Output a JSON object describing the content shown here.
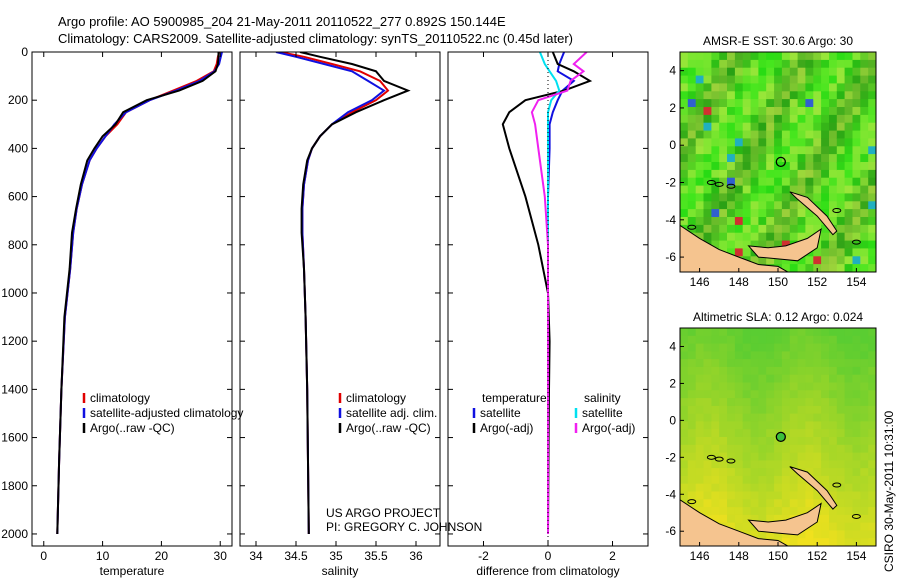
{
  "header": {
    "line1": "Argo profile: AO 5900985_204 21-May-2011 20110522_277 0.892S 150.144E",
    "line2": "Climatology: CARS2009. Satellite-adjusted climatology: synTS_20110522.nc (0.45d later)"
  },
  "colors": {
    "climatology": "#e00000",
    "satellite": "#1010e0",
    "argo": "#000000",
    "satellite_cyan": "#00e0f0",
    "argo_adj": "#f020f0"
  },
  "project": {
    "line1": "US ARGO PROJECT",
    "line2": "PI: GREGORY C. JOHNSON"
  },
  "credit": "CSIRO 30-May-2011 10:31:00",
  "chart_data": [
    {
      "type": "line",
      "id": "temperature",
      "xlabel": "temperature",
      "ylabel": "",
      "xlim": [
        -2,
        32
      ],
      "ylim": [
        2050,
        0
      ],
      "xticks": [
        0,
        10,
        20,
        30
      ],
      "yticks": [
        0,
        200,
        400,
        600,
        800,
        1000,
        1200,
        1400,
        1600,
        1800,
        2000
      ],
      "legend": [
        "climatology",
        "satellite-adjusted climatology",
        "Argo(..raw -QC)"
      ],
      "series": [
        {
          "name": "climatology",
          "color": "climatology",
          "x": [
            29.8,
            29.6,
            29.4,
            28.9,
            26,
            22,
            18,
            14,
            12.5,
            10.5,
            9,
            7.8,
            6.5,
            5.6,
            5,
            4.5,
            3.6,
            3,
            2.6,
            2.3
          ],
          "y": [
            0,
            20,
            50,
            80,
            120,
            160,
            200,
            250,
            300,
            350,
            400,
            450,
            550,
            650,
            750,
            900,
            1100,
            1400,
            1700,
            2000
          ]
        },
        {
          "name": "satellite-adjusted climatology",
          "color": "satellite",
          "x": [
            30.3,
            30.1,
            29.8,
            29,
            26.5,
            22.5,
            18,
            14,
            12,
            10.5,
            9,
            7.8,
            6.5,
            5.6,
            5,
            4.5,
            3.6,
            3,
            2.6,
            2.3
          ],
          "y": [
            0,
            20,
            50,
            80,
            120,
            160,
            200,
            250,
            300,
            350,
            400,
            450,
            550,
            650,
            750,
            900,
            1100,
            1400,
            1700,
            2000
          ]
        },
        {
          "name": "Argo(..raw -QC)",
          "color": "argo",
          "x": [
            29.7,
            29.7,
            29.6,
            29.2,
            27,
            23,
            17.5,
            13.5,
            12.2,
            10,
            8.6,
            7.4,
            6.3,
            5.5,
            4.8,
            4.4,
            3.5,
            3,
            2.6,
            2.3
          ],
          "y": [
            0,
            20,
            50,
            80,
            120,
            160,
            200,
            250,
            300,
            350,
            400,
            450,
            550,
            650,
            750,
            900,
            1100,
            1400,
            1700,
            2000
          ]
        }
      ]
    },
    {
      "type": "line",
      "id": "salinity",
      "xlabel": "salinity",
      "ylabel": "",
      "xlim": [
        33.8,
        36.3
      ],
      "xticks": [
        34,
        34.5,
        35,
        35.5,
        36
      ],
      "legend": [
        "climatology",
        "satellite adj. clim.",
        "Argo(..raw -QC)"
      ],
      "series": [
        {
          "name": "climatology",
          "color": "climatology",
          "x": [
            34.3,
            34.6,
            34.95,
            35.3,
            35.55,
            35.65,
            35.5,
            35.2,
            34.95,
            34.8,
            34.7,
            34.65,
            34.6,
            34.58,
            34.58,
            34.6,
            34.62,
            34.64,
            34.65,
            34.66
          ],
          "y": [
            0,
            20,
            50,
            80,
            120,
            160,
            200,
            250,
            300,
            350,
            400,
            450,
            550,
            650,
            750,
            900,
            1100,
            1400,
            1700,
            2000
          ]
        },
        {
          "name": "satellite adj. clim.",
          "color": "satellite",
          "x": [
            34.25,
            34.5,
            34.85,
            35.2,
            35.4,
            35.6,
            35.45,
            35.15,
            34.95,
            34.8,
            34.7,
            34.65,
            34.6,
            34.58,
            34.58,
            34.6,
            34.62,
            34.64,
            34.65,
            34.66
          ],
          "y": [
            0,
            20,
            50,
            80,
            120,
            160,
            200,
            250,
            300,
            350,
            400,
            450,
            550,
            650,
            750,
            900,
            1100,
            1400,
            1700,
            2000
          ]
        },
        {
          "name": "Argo(..raw -QC)",
          "color": "argo",
          "x": [
            34.55,
            34.8,
            35.2,
            35.5,
            35.6,
            35.9,
            35.6,
            35.25,
            34.95,
            34.8,
            34.7,
            34.64,
            34.59,
            34.57,
            34.57,
            34.6,
            34.62,
            34.64,
            34.65,
            34.66
          ],
          "y": [
            0,
            20,
            50,
            80,
            120,
            160,
            200,
            250,
            300,
            350,
            400,
            450,
            550,
            650,
            750,
            900,
            1100,
            1400,
            1700,
            2000
          ]
        }
      ]
    },
    {
      "type": "line",
      "id": "difference",
      "xlabel": "difference from climatology",
      "ylabel": "",
      "xlim": [
        -3.1,
        3.1
      ],
      "xticks": [
        -2,
        0,
        2
      ],
      "legend": [
        "temperature",
        "satellite",
        "Argo(-adj)",
        "salinity",
        "satellite",
        "Argo(-adj)"
      ],
      "series": [
        {
          "name": "temperature satellite",
          "color": "satellite",
          "x": [
            0.5,
            0.35,
            0.3,
            0.8,
            0.45,
            0.3,
            0.15,
            0.05,
            0.05,
            0,
            0,
            0,
            0,
            0,
            0,
            0,
            0
          ],
          "y": [
            0,
            50,
            80,
            120,
            160,
            200,
            250,
            300,
            400,
            600,
            800,
            1000,
            1200,
            1400,
            1600,
            1800,
            2000
          ]
        },
        {
          "name": "temperature Argo(-adj)",
          "color": "argo",
          "x": [
            0.15,
            0.3,
            0.8,
            1.3,
            0.5,
            -0.7,
            -1.2,
            -1.4,
            -1.2,
            -0.7,
            -0.3,
            0,
            0.05,
            0.03,
            0.02,
            0.01,
            0
          ],
          "y": [
            0,
            50,
            80,
            120,
            160,
            200,
            250,
            300,
            400,
            600,
            800,
            1000,
            1200,
            1400,
            1600,
            1800,
            2000
          ]
        },
        {
          "name": "salinity satellite",
          "color": "satellite_cyan",
          "x": [
            -0.25,
            -0.1,
            0.05,
            0.25,
            0.35,
            0.1,
            0,
            0,
            0,
            0,
            0,
            0,
            0,
            0,
            0,
            0,
            0
          ],
          "y": [
            0,
            50,
            80,
            120,
            160,
            200,
            250,
            300,
            400,
            600,
            800,
            1000,
            1200,
            1400,
            1600,
            1800,
            2000
          ]
        },
        {
          "name": "salinity Argo(-adj)",
          "color": "argo_adj",
          "x": [
            1.2,
            0.8,
            1.1,
            0.7,
            0.6,
            -0.3,
            -0.5,
            -0.4,
            -0.3,
            -0.1,
            0,
            0,
            0,
            0,
            0,
            0,
            0
          ],
          "y": [
            0,
            50,
            80,
            120,
            160,
            200,
            250,
            300,
            400,
            600,
            800,
            1000,
            1200,
            1400,
            1600,
            1800,
            2000
          ]
        }
      ]
    },
    {
      "type": "heatmap",
      "id": "sst_map",
      "title": "AMSR-E SST: 30.6 Argo: 30",
      "xticks": [
        146,
        148,
        150,
        152,
        154
      ],
      "yticks": [
        4,
        2,
        0,
        -2,
        -4,
        -6
      ],
      "xlim": [
        145,
        155
      ],
      "ylim": [
        -6.8,
        5
      ],
      "marker": {
        "lon": 150.144,
        "lat": -0.892
      }
    },
    {
      "type": "heatmap",
      "id": "sla_map",
      "title": "Altimetric SLA: 0.12 Argo: 0.024",
      "xticks": [
        146,
        148,
        150,
        152,
        154
      ],
      "yticks": [
        4,
        2,
        0,
        -2,
        -4,
        -6
      ],
      "xlim": [
        145,
        155
      ],
      "ylim": [
        -6.8,
        5
      ],
      "marker": {
        "lon": 150.144,
        "lat": -0.892
      }
    }
  ]
}
